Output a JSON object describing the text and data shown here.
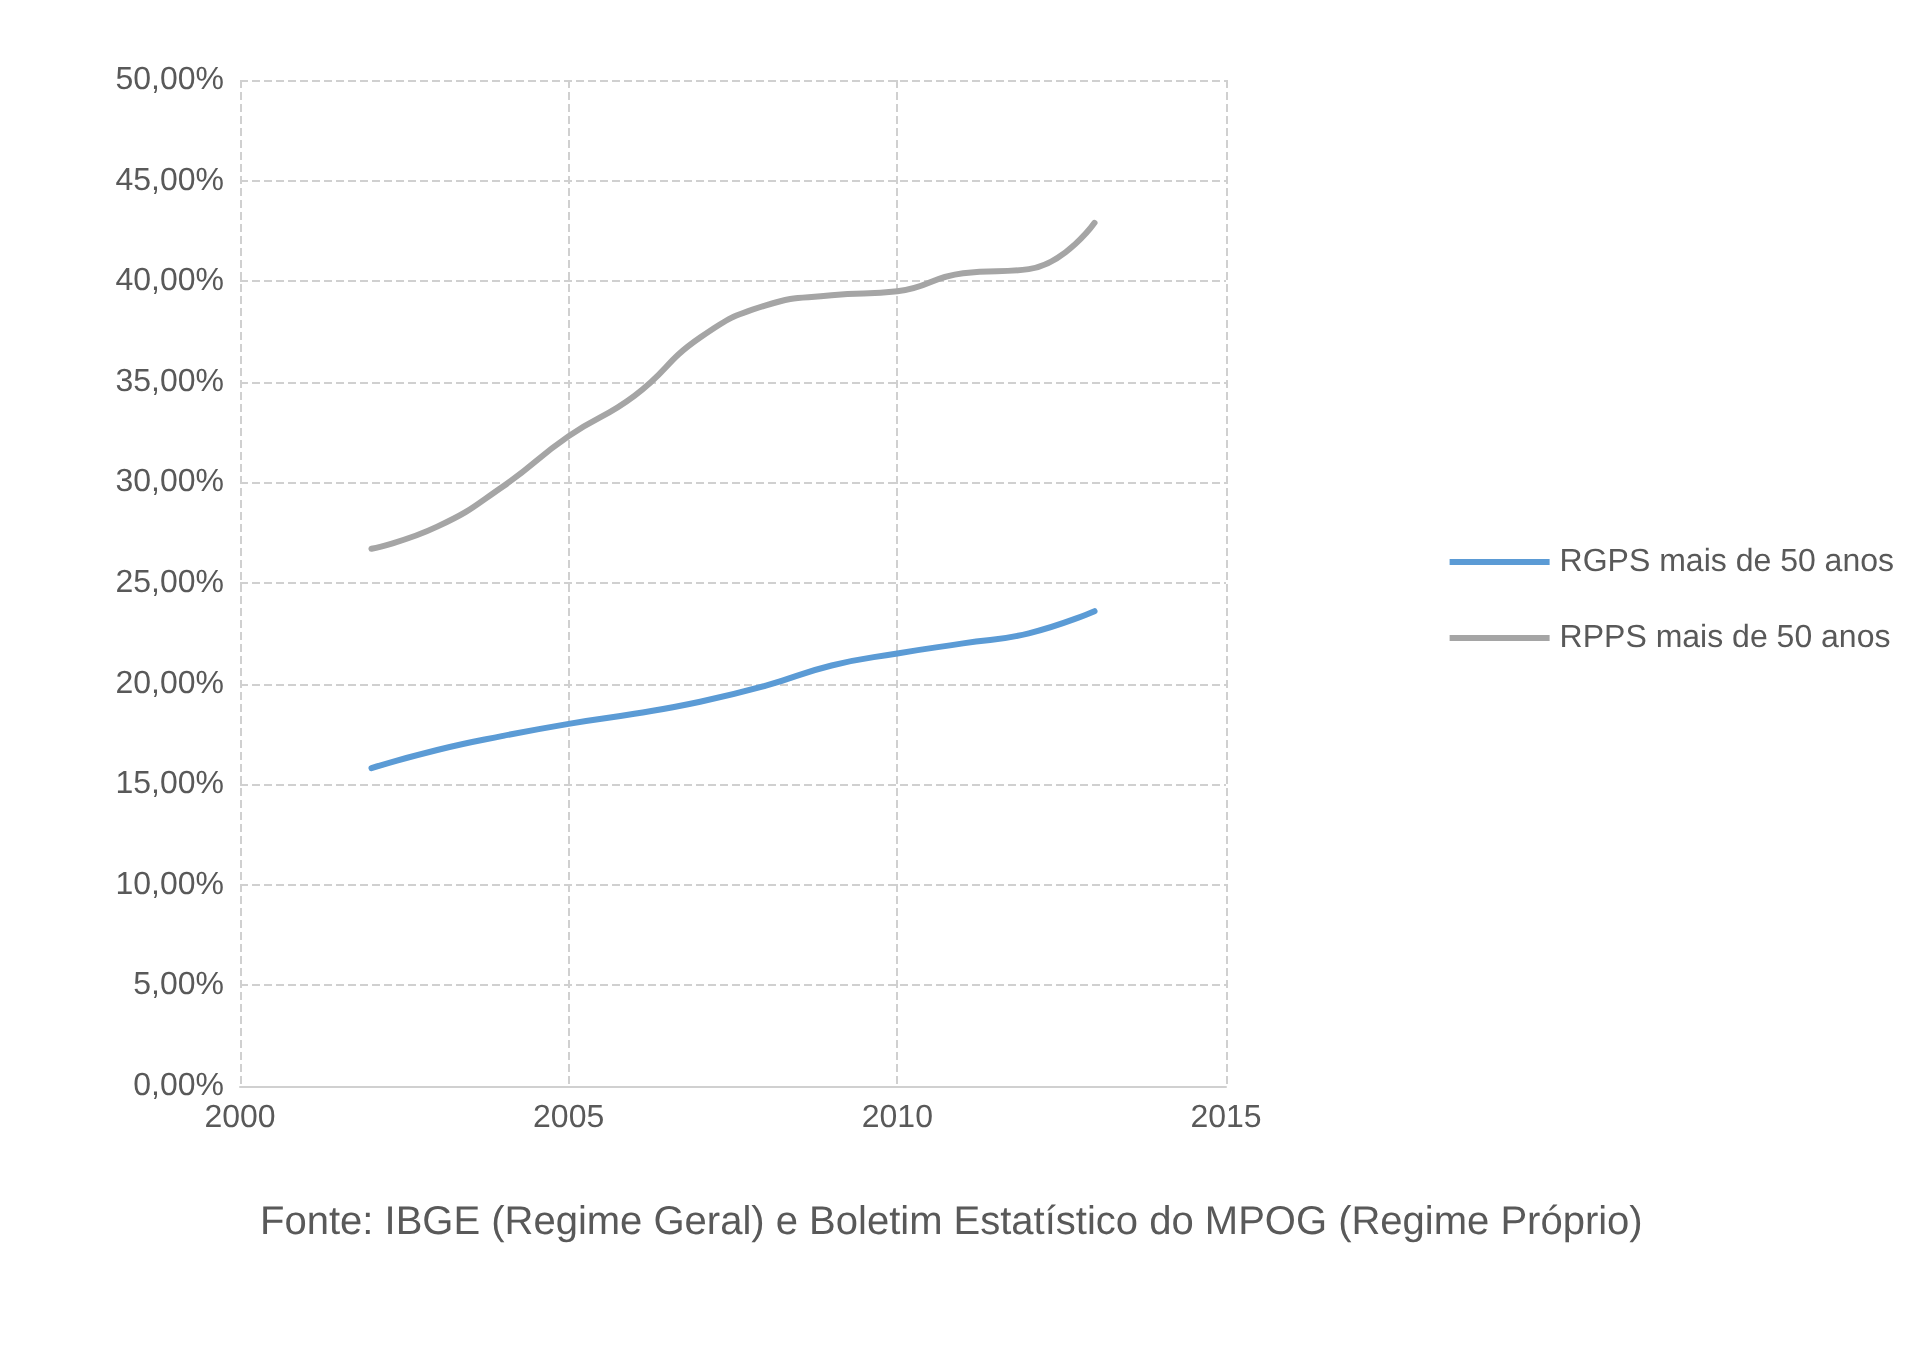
{
  "chart_data": {
    "type": "line",
    "x": [
      2002,
      2003,
      2004,
      2005,
      2006,
      2007,
      2008,
      2009,
      2010,
      2011,
      2012,
      2013
    ],
    "series": [
      {
        "name": "RGPS mais de 50 anos",
        "color": "#5b9bd5",
        "values": [
          15.8,
          16.7,
          17.4,
          18.0,
          18.5,
          19.1,
          19.9,
          20.9,
          21.5,
          22.0,
          22.5,
          23.6
        ]
      },
      {
        "name": "RPPS mais de 50 anos",
        "color": "#a5a5a5",
        "values": [
          26.7,
          27.8,
          29.8,
          32.3,
          34.3,
          37.2,
          38.8,
          39.3,
          39.5,
          40.4,
          40.6,
          42.9
        ]
      }
    ],
    "xlim": [
      2000,
      2015
    ],
    "xticks": [
      2000,
      2005,
      2010,
      2015
    ],
    "ylim": [
      0,
      50
    ],
    "yticks": [
      {
        "value": 0,
        "label": "0,00%"
      },
      {
        "value": 5,
        "label": "5,00%"
      },
      {
        "value": 10,
        "label": "10,00%"
      },
      {
        "value": 15,
        "label": "15,00%"
      },
      {
        "value": 20,
        "label": "20,00%"
      },
      {
        "value": 25,
        "label": "25,00%"
      },
      {
        "value": 30,
        "label": "30,00%"
      },
      {
        "value": 35,
        "label": "35,00%"
      },
      {
        "value": 40,
        "label": "40,00%"
      },
      {
        "value": 45,
        "label": "45,00%"
      },
      {
        "value": 50,
        "label": "50,00%"
      }
    ],
    "grid": true,
    "legend": "right",
    "marker": "none",
    "line_style": "solid",
    "annotations": [
      "Fonte: IBGE (Regime Geral) e Boletim Estatístico do MPOG (Regime Próprio)"
    ]
  }
}
